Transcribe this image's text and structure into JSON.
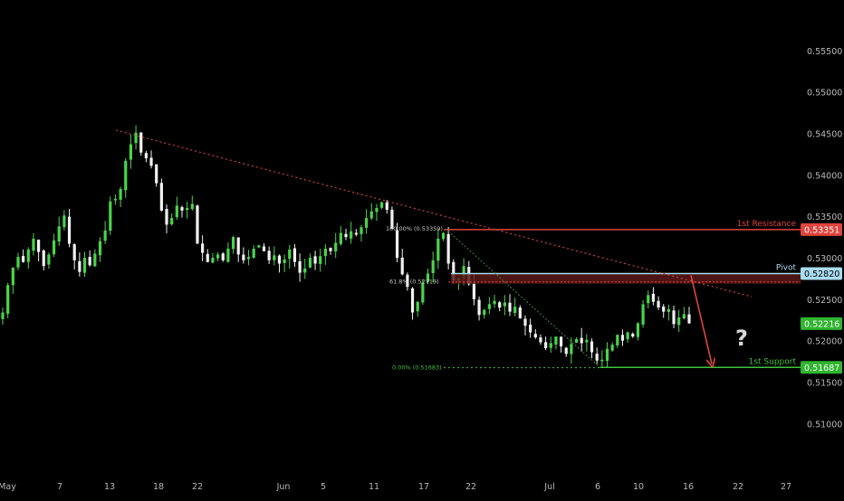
{
  "chart_data": {
    "type": "candlestick",
    "ylim": [
      0.5085,
      0.5575
    ],
    "grid": false,
    "y_ticks": [
      "0.55500",
      "0.55000",
      "0.54500",
      "0.54000",
      "0.53500",
      "0.53000",
      "0.52500",
      "0.52000",
      "0.51500",
      "0.51000"
    ],
    "x_ticks": [
      "May",
      "7",
      "13",
      "18",
      "22",
      "Jun",
      "5",
      "11",
      "17",
      "22",
      "Jul",
      "6",
      "10",
      "16",
      "22",
      "27"
    ],
    "levels": {
      "resistance": {
        "label": "1st Resistance",
        "value": "0.53351",
        "price": 0.53351
      },
      "pivot": {
        "label": "Pivot",
        "value": "0.52820",
        "price": 0.5282
      },
      "support": {
        "label": "1st Support",
        "value": "0.51687",
        "price": 0.51687
      },
      "current": {
        "value": "0.52216",
        "price": 0.52216
      }
    },
    "fibonacci": [
      {
        "label": "100.00% (0.53359)",
        "price": 0.53359
      },
      {
        "label": "61.8% (0.52719)",
        "price": 0.52719
      },
      {
        "label": "0.00% (0.51683)",
        "price": 0.51683
      }
    ],
    "trendline": {
      "start_price": 0.5455,
      "end_price": 0.5254
    },
    "annotation": "?",
    "close_path": [
      0.5235,
      0.5268,
      0.5289,
      0.5302,
      0.5296,
      0.5311,
      0.5324,
      0.5308,
      0.5291,
      0.5305,
      0.5322,
      0.5339,
      0.5352,
      0.5318,
      0.5298,
      0.5284,
      0.5301,
      0.5292,
      0.5306,
      0.5321,
      0.5334,
      0.5369,
      0.5372,
      0.5384,
      0.5418,
      0.5438,
      0.5452,
      0.5428,
      0.5421,
      0.5412,
      0.5391,
      0.5358,
      0.5341,
      0.5349,
      0.5364,
      0.5358,
      0.5361,
      0.5366,
      0.5318,
      0.5307,
      0.5296,
      0.5301,
      0.5305,
      0.5298,
      0.5312,
      0.5326,
      0.5305,
      0.5298,
      0.5302,
      0.5312,
      0.5316,
      0.5309,
      0.5298,
      0.5304,
      0.5294,
      0.5299,
      0.5311,
      0.5296,
      0.5283,
      0.5288,
      0.5301,
      0.5294,
      0.5303,
      0.5312,
      0.5309,
      0.5319,
      0.5331,
      0.5326,
      0.5333,
      0.5329,
      0.5338,
      0.5349,
      0.5357,
      0.5361,
      0.5368,
      0.5359,
      0.5336,
      0.5301,
      0.5281,
      0.5266,
      0.5235,
      0.5248,
      0.5271,
      0.5282,
      0.5298,
      0.5324,
      0.5331,
      0.5294,
      0.5274,
      0.5276,
      0.5291,
      0.5269,
      0.5251,
      0.5232,
      0.5238,
      0.5245,
      0.5249,
      0.5241,
      0.5247,
      0.5236,
      0.5242,
      0.5228,
      0.5219,
      0.5211,
      0.5205,
      0.5199,
      0.5192,
      0.5198,
      0.5206,
      0.5194,
      0.5185,
      0.5197,
      0.5203,
      0.5198,
      0.5202,
      0.5187,
      0.5177,
      0.5178,
      0.5191,
      0.5196,
      0.5208,
      0.5201,
      0.5211,
      0.5206,
      0.5222,
      0.5245,
      0.5256,
      0.5248,
      0.5241,
      0.5236,
      0.5239,
      0.5221,
      0.5229,
      0.5233,
      0.5222
    ]
  }
}
